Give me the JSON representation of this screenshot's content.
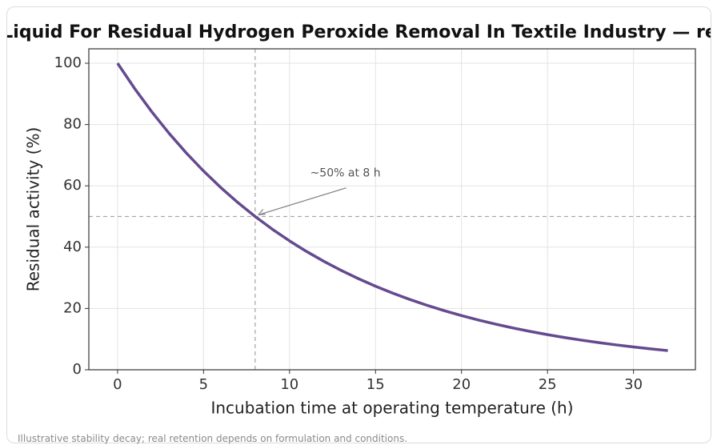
{
  "chart_data": {
    "type": "line",
    "title": "Liquid For Residual Hydrogen Peroxide Removal In Textile Industry — re",
    "xlabel": "Incubation time at operating temperature (h)",
    "ylabel": "Residual activity (%)",
    "x": [
      0,
      1,
      2,
      3,
      4,
      5,
      6,
      7,
      8,
      9,
      10,
      11,
      12,
      13,
      14,
      15,
      16,
      17,
      18,
      19,
      20,
      21,
      22,
      23,
      24,
      25,
      26,
      27,
      28,
      29,
      30,
      31,
      32
    ],
    "series": [
      {
        "name": "Residual activity",
        "color": "#654a8f",
        "values": [
          100,
          91.7,
          84.09,
          77.11,
          70.71,
          64.84,
          59.46,
          54.53,
          50,
          45.85,
          42.04,
          38.56,
          35.36,
          32.42,
          29.73,
          27.26,
          25,
          22.93,
          21.02,
          19.28,
          17.68,
          16.21,
          14.87,
          13.63,
          12.5,
          11.46,
          10.51,
          9.64,
          8.84,
          8.11,
          7.43,
          6.82,
          6.25
        ]
      }
    ],
    "xlim": [
      -1.67,
      33.6
    ],
    "xticks": [
      0,
      5,
      10,
      15,
      20,
      25,
      30
    ],
    "ylim": [
      0,
      104.7
    ],
    "yticks": [
      0,
      20,
      40,
      60,
      80,
      100
    ],
    "grid": true,
    "vlines": [
      8
    ],
    "hlines": [
      50
    ],
    "annotation": {
      "text": "~50% at 8 h",
      "x": 8,
      "y": 50,
      "text_x": 11.2,
      "text_y": 63
    },
    "footnote": "Illustrative stability decay; real retention depends on formulation and conditions."
  }
}
